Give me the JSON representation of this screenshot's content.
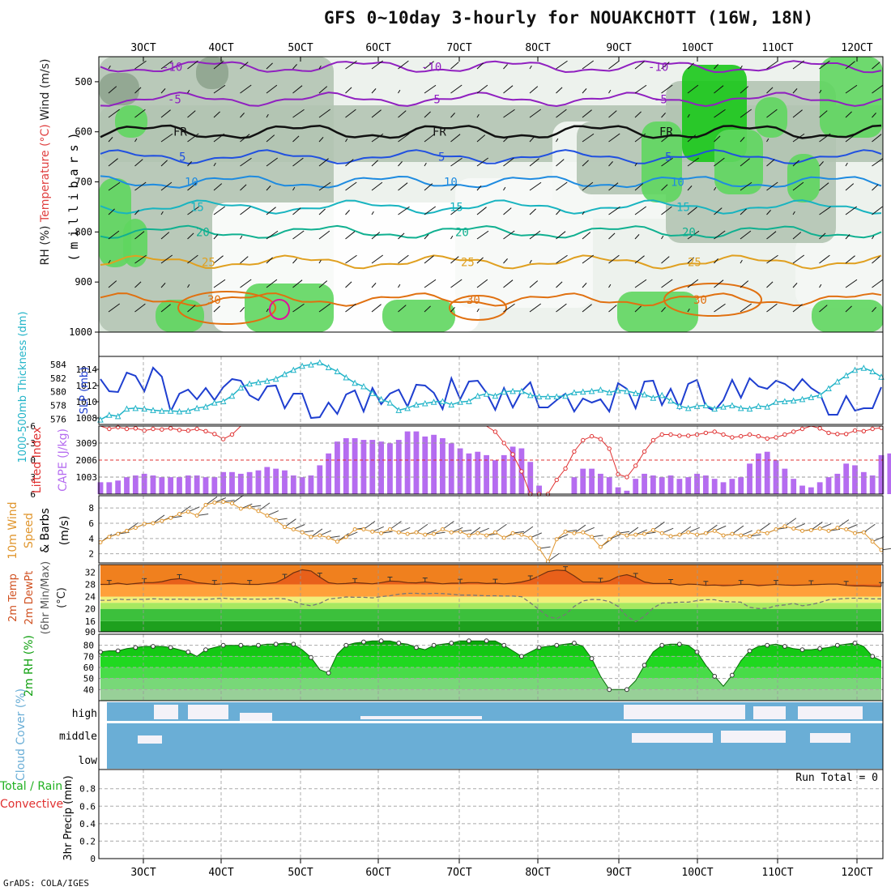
{
  "title": "GFS 0~10day 3-hourly for NOUAKCHOTT (16W, 18N)",
  "credit": "GrADS: COLA/IGES",
  "x_ticks": [
    "3OCT",
    "4OCT",
    "5OCT",
    "6OCT",
    "7OCT",
    "8OCT",
    "9OCT",
    "10OCT",
    "11OCT",
    "12OCT"
  ],
  "colors": {
    "rh_light": "#dde8dd",
    "rh_mid": "#b3c4b3",
    "rh_gray": "#8fa48f",
    "rh_green": "#5fd65f",
    "rh_bright": "#19c819",
    "slp": "#1f3fd0",
    "thickness": "#22b4c8",
    "lifted": "#e03030",
    "cape": "#b56cf0",
    "wind": "#e0962e",
    "temp_fill": "#e8601a",
    "dewpt": "#777",
    "rh2m": "#10c010",
    "cloud": "#6aaed6"
  },
  "chart_data": [
    {
      "type": "contour",
      "name": "upper-air",
      "ylabel_parts": [
        "RH (%)",
        "Temperature (°C)",
        "Wind (m/s)"
      ],
      "yaxis_label": "(millibars)",
      "y_ticks": [
        "500",
        "600",
        "700",
        "800",
        "900",
        "1000"
      ],
      "ylim": [
        450,
        1000
      ],
      "isotherms": [
        {
          "value": -10,
          "pressure": 470,
          "label": "-10"
        },
        {
          "value": -5,
          "pressure": 535,
          "label": "-5"
        },
        {
          "value": 0,
          "pressure": 600,
          "label": "FR"
        },
        {
          "value": 5,
          "pressure": 650,
          "label": "5"
        },
        {
          "value": 10,
          "pressure": 700,
          "label": "10"
        },
        {
          "value": 15,
          "pressure": 750,
          "label": "15"
        },
        {
          "value": 20,
          "pressure": 800,
          "label": "20"
        },
        {
          "value": 25,
          "pressure": 860,
          "label": "25"
        },
        {
          "value": 30,
          "pressure": 935,
          "label": "30"
        }
      ]
    },
    {
      "type": "line",
      "name": "slp-thickness",
      "ylabel": "SLP (mb)",
      "ylabel2": "1000-500mb Thickness (dm)",
      "y_ticks": [
        "1014",
        "1012",
        "1010",
        "1008"
      ],
      "y2_ticks": [
        "584",
        "582",
        "580",
        "578",
        "576"
      ],
      "series": [
        {
          "name": "SLP",
          "values": [
            1012.8,
            1011.3,
            1011.2,
            1013.6,
            1013.2,
            1011.3,
            1014.2,
            1013.1,
            1008.8,
            1011.0,
            1011.5,
            1010.3,
            1011.7,
            1010.2,
            1011.8,
            1012.8,
            1012.6,
            1010.8,
            1010.2,
            1011.9,
            1012.0,
            1009.2,
            1011.0,
            1011.0,
            1008.0,
            1008.1,
            1009.9,
            1008.5,
            1010.9,
            1011.4,
            1008.8,
            1011.7,
            1009.7,
            1011.0,
            1011.5,
            1009.4,
            1012.1,
            1012.0,
            1011.1,
            1009.1,
            1012.9,
            1010.3,
            1012.5,
            1012.6,
            1011.1,
            1009.0,
            1011.7,
            1009.3,
            1011.3,
            1012.4,
            1009.3,
            1009.3,
            1010.2,
            1011.0,
            1008.8,
            1010.4,
            1009.9,
            1010.3,
            1008.8,
            1012.3,
            1011.6,
            1009.2,
            1012.5,
            1012.6,
            1009.6,
            1011.6,
            1009.2,
            1012.2,
            1012.7,
            1009.4,
            1008.9,
            1010.2,
            1012.7,
            1010.5,
            1012.9,
            1011.9,
            1011.6,
            1012.6,
            1012.2,
            1011.4,
            1012.8,
            1011.7,
            1011.0,
            1008.4,
            1008.4,
            1010.7,
            1008.9,
            1009.2,
            1009.2,
            1011.8
          ]
        },
        {
          "name": "Thickness",
          "values": [
            575.9,
            576.6,
            576.4,
            577.5,
            577.6,
            577.5,
            577.3,
            577.2,
            577.2,
            577.1,
            577.2,
            577.6,
            577.8,
            578.4,
            578.6,
            579.4,
            580.6,
            581.2,
            581.4,
            581.6,
            581.9,
            582.6,
            583.2,
            583.8,
            584.0,
            584.3,
            583.6,
            583.0,
            582.1,
            581.3,
            580.8,
            579.8,
            578.9,
            578.4,
            577.3,
            577.6,
            578.1,
            578.3,
            578.5,
            578.6,
            578.1,
            578.5,
            578.6,
            579.4,
            579.7,
            579.4,
            580.0,
            580.1,
            580.1,
            579.5,
            579.3,
            579.3,
            579.3,
            579.4,
            579.9,
            580.0,
            580.1,
            580.3,
            579.9,
            580.2,
            580.1,
            579.8,
            579.6,
            579.1,
            579.5,
            578.7,
            577.9,
            577.6,
            577.9,
            578.0,
            577.5,
            577.8,
            578.0,
            577.6,
            577.5,
            577.9,
            577.8,
            578.5,
            578.6,
            578.7,
            578.9,
            579.2,
            579.5,
            580.5,
            581.5,
            582.4,
            583.2,
            583.5,
            583.0,
            582.2
          ]
        }
      ]
    },
    {
      "type": "bar",
      "name": "lifted-cape",
      "ylabel": "Lifted Index",
      "ylabel2": "CAPE (J/kg)",
      "y_ticks": [
        "-6",
        "-3",
        "0",
        "3",
        "6"
      ],
      "y2_ticks": [
        "3009",
        "2006",
        "1003"
      ],
      "series": [
        {
          "name": "CAPE",
          "values": [
            700,
            700,
            800,
            1000,
            1100,
            1200,
            1100,
            1000,
            1000,
            1000,
            1100,
            1100,
            1000,
            1000,
            1300,
            1300,
            1200,
            1300,
            1400,
            1600,
            1500,
            1400,
            1100,
            1000,
            1100,
            1700,
            2400,
            3100,
            3300,
            3300,
            3200,
            3200,
            3100,
            3000,
            3200,
            3700,
            3700,
            3400,
            3500,
            3300,
            3000,
            2700,
            2400,
            2500,
            2300,
            2000,
            2300,
            2800,
            2700,
            1900,
            500,
            0,
            0,
            0,
            1000,
            1500,
            1500,
            1200,
            1000,
            400,
            200,
            900,
            1200,
            1100,
            1000,
            1100,
            900,
            1000,
            1200,
            1100,
            900,
            700,
            900,
            1000,
            1800,
            2400,
            2500,
            2000,
            1500,
            900,
            500,
            400,
            700,
            1000,
            1200,
            1800,
            1700,
            1300,
            1100,
            2300,
            2400,
            2500,
            2400
          ]
        },
        {
          "name": "Lifted Index",
          "values": [
            -6,
            -5.5,
            -5.8,
            -5.5,
            -5.6,
            -5.2,
            -5.5,
            -5.4,
            -5.6,
            -5.3,
            -5.2,
            -5.5,
            -5.1,
            -4.6,
            -3.7,
            -4.5,
            -6,
            -6,
            -6,
            -6,
            -6,
            -6,
            -6,
            -6,
            -6,
            -6,
            -6,
            -6,
            -6,
            -6,
            -6,
            -6,
            -6,
            -6,
            -6,
            -6,
            -6,
            -6,
            -6,
            -6,
            -6,
            -6,
            -6,
            -6,
            -6,
            -5,
            -3,
            -1,
            2,
            6,
            6,
            6,
            3.5,
            1.5,
            -1.5,
            -3.5,
            -4.2,
            -3.7,
            -2.0,
            2.5,
            3,
            1,
            -1.5,
            -3.5,
            -4.5,
            -4.5,
            -4.3,
            -4.3,
            -4.5,
            -4.8,
            -5.0,
            -4.5,
            -4.0,
            -4.2,
            -4.5,
            -4.2,
            -3.8,
            -4.0,
            -4.5,
            -5,
            -5.5,
            -6,
            -5.6,
            -4.8,
            -4.6,
            -4.6,
            -5.2,
            -5.1,
            -5.5,
            -5.7
          ]
        }
      ]
    },
    {
      "type": "line",
      "name": "wind10m",
      "ylabel": "10m Wind Speed & Barbs (m/s)",
      "ylabel_parts": [
        "10m Wind",
        "Speed",
        "& Barbs",
        "(m/s)"
      ],
      "y_ticks": [
        "8",
        "6",
        "4",
        "2"
      ],
      "series": [
        {
          "name": "Wind speed",
          "values": [
            3.5,
            4.2,
            4.6,
            5.0,
            5.4,
            5.9,
            6.0,
            6.3,
            6.7,
            7.2,
            7.5,
            7.0,
            8.4,
            8.7,
            8.8,
            8.6,
            7.9,
            8.1,
            7.6,
            7.0,
            6.4,
            5.5,
            5.2,
            4.8,
            4.2,
            4.4,
            4.1,
            3.6,
            4.2,
            5.2,
            5.2,
            4.9,
            4.7,
            5.2,
            4.8,
            4.6,
            4.8,
            4.5,
            4.6,
            5.2,
            4.8,
            4.9,
            4.4,
            4.7,
            4.4,
            4.8,
            4.1,
            4.7,
            4.5,
            4.1,
            2.7,
            1.0,
            3.9,
            4.9,
            4.7,
            4.8,
            4.2,
            2.9,
            3.9,
            4.7,
            4.4,
            4.5,
            4.6,
            5.1,
            4.7,
            4.3,
            4.5,
            4.8,
            4.5,
            4.7,
            5.0,
            4.4,
            4.6,
            4.4,
            4.3,
            4.9,
            4.7,
            5.2,
            5.6,
            5.3,
            5.0,
            5.1,
            5.3,
            5.0,
            5.4,
            5.2,
            4.7,
            4.8,
            3.6,
            2.5
          ]
        }
      ]
    },
    {
      "type": "area",
      "name": "temp2m",
      "ylabel": "2m Temp 2m DewPt (6hr Min/Max) (°C)",
      "ylabel_parts": [
        "2m Temp",
        "2m DewPt",
        "(6hr Min/Max)",
        "(°C)"
      ],
      "y_ticks": [
        "32",
        "28",
        "24",
        "20",
        "16",
        "90"
      ],
      "series": [
        {
          "name": "2m Temp",
          "values": [
            28.0,
            28.0,
            28.4,
            28.0,
            28.3,
            28.6,
            28.6,
            28.9,
            29.6,
            29.9,
            29.4,
            28.6,
            28.3,
            28.0,
            28.2,
            28.4,
            28.1,
            28.0,
            28.0,
            28.3,
            28.6,
            30.0,
            31.8,
            32.8,
            32.4,
            30.4,
            28.6,
            28.2,
            28.3,
            28.6,
            28.4,
            28.2,
            28.6,
            29.1,
            29.0,
            28.6,
            28.5,
            28.8,
            28.5,
            28.2,
            28.4,
            28.4,
            28.6,
            28.6,
            28.3,
            28.4,
            28.2,
            28.4,
            28.8,
            29.5,
            30.8,
            32.2,
            32.7,
            32.5,
            30.8,
            28.8,
            28.8,
            28.7,
            29.2,
            30.6,
            31.2,
            30.3,
            28.8,
            28.3,
            28.3,
            28.3,
            27.8,
            28.1,
            28.0,
            27.7,
            27.8,
            27.6,
            27.7,
            28.0,
            28.0,
            27.6,
            27.8,
            28.0,
            27.8,
            27.7,
            27.8,
            27.9,
            28.0,
            28.1,
            28.1,
            27.7,
            27.5,
            27.5,
            27.4,
            27.3
          ]
        },
        {
          "name": "2m DewPt",
          "values": [
            22.8,
            22.8,
            23.2,
            23.0,
            23.1,
            23.1,
            23.3,
            23.2,
            23.1,
            23.2,
            23.1,
            23.1,
            23.1,
            23.3,
            23.5,
            23.2,
            23.3,
            23.2,
            23.2,
            23.2,
            23.4,
            23.3,
            22.5,
            21.5,
            21.0,
            21.8,
            23.2,
            23.5,
            23.9,
            23.8,
            23.8,
            23.6,
            24.0,
            24.3,
            24.8,
            25.1,
            25.1,
            24.9,
            25.1,
            25.0,
            24.8,
            24.5,
            24.5,
            24.4,
            24.3,
            24.3,
            24.2,
            24.2,
            24.0,
            22.0,
            19.8,
            17.5,
            16.8,
            18.2,
            20.8,
            22.6,
            23.1,
            23.0,
            22.4,
            20.8,
            17.6,
            15.8,
            17.6,
            20.3,
            21.9,
            22.0,
            22.2,
            22.2,
            22.7,
            23.0,
            23.0,
            22.4,
            22.3,
            22.2,
            20.5,
            20.1,
            20.2,
            21.0,
            21.3,
            21.8,
            21.0,
            21.4,
            22.1,
            23.0,
            23.2,
            23.4,
            23.5,
            23.4,
            23.3,
            23.3
          ]
        }
      ]
    },
    {
      "type": "area",
      "name": "rh2m",
      "ylabel": "2m RH (%)",
      "y_ticks": [
        "80",
        "70",
        "60",
        "50",
        "40"
      ],
      "series": [
        {
          "name": "2m RH",
          "values": [
            74,
            75,
            75,
            77,
            78,
            79,
            79,
            79,
            78,
            76,
            74,
            70,
            76,
            78,
            80,
            80,
            80,
            79,
            80,
            81,
            81,
            82,
            81,
            76,
            69,
            58,
            55,
            72,
            80,
            82,
            83,
            84,
            84,
            84,
            82,
            81,
            78,
            76,
            80,
            81,
            82,
            84,
            84,
            84,
            84,
            84,
            80,
            75,
            70,
            74,
            78,
            79,
            80,
            81,
            82,
            79,
            68,
            52,
            40,
            40,
            40,
            48,
            62,
            74,
            80,
            81,
            81,
            80,
            74,
            62,
            52,
            43,
            53,
            66,
            75,
            79,
            80,
            81,
            79,
            77,
            76,
            76,
            77,
            78,
            80,
            81,
            82,
            79,
            70,
            66
          ]
        }
      ]
    },
    {
      "type": "area",
      "name": "cloud",
      "ylabel": "Cloud Cover (%)",
      "categories": [
        "high",
        "middle",
        "low"
      ]
    },
    {
      "type": "bar",
      "name": "precip",
      "ylabel": "Total / Rain Convective",
      "ylabel_parts": [
        "Total / Rain",
        "Convective"
      ],
      "ylabel2": "3hr Precip (mm)",
      "y_ticks": [
        "0.8",
        "0.6",
        "0.4",
        "0.2",
        "0"
      ],
      "run_total": "Run Total = 0",
      "series": [
        {
          "name": "Total",
          "values": []
        }
      ]
    }
  ]
}
